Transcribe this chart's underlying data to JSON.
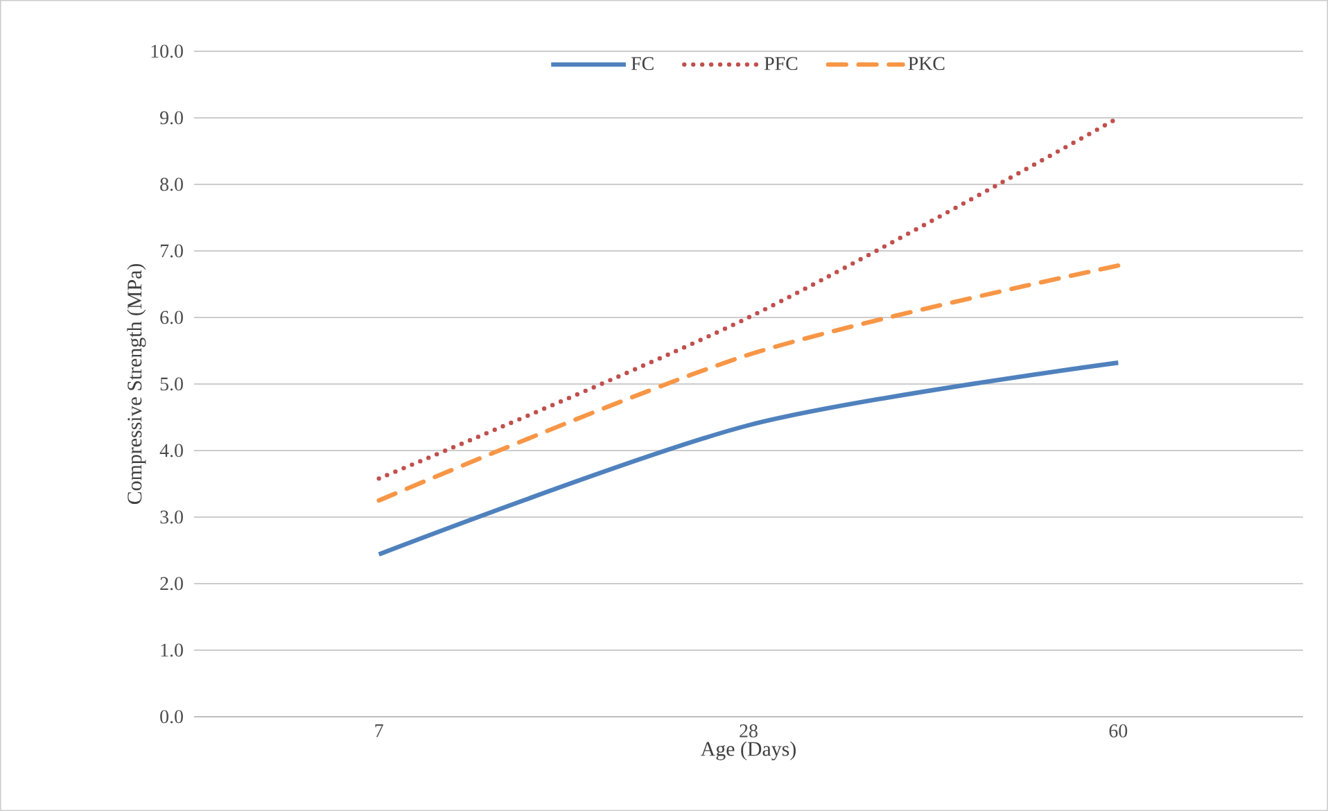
{
  "chart_data": {
    "type": "line",
    "xlabel": "Age (Days)",
    "ylabel": "Compressive Strength (MPa)",
    "categories": [
      "7",
      "28",
      "60"
    ],
    "series": [
      {
        "name": "FC",
        "color": "#4f81bd",
        "line_style": "solid",
        "values": [
          2.44,
          4.38,
          5.32
        ]
      },
      {
        "name": "PFC",
        "color": "#c0504d",
        "line_style": "dotted",
        "values": [
          3.58,
          6.0,
          9.0
        ]
      },
      {
        "name": "PKC",
        "color": "#f79646",
        "line_style": "dashed",
        "values": [
          3.25,
          5.44,
          6.78
        ]
      }
    ],
    "ylim": [
      0,
      10
    ],
    "yticks": [
      {
        "value": 0,
        "label": "0.0"
      },
      {
        "value": 1,
        "label": "1.0"
      },
      {
        "value": 2,
        "label": "2.0"
      },
      {
        "value": 3,
        "label": "3.0"
      },
      {
        "value": 4,
        "label": "4.0"
      },
      {
        "value": 5,
        "label": "5.0"
      },
      {
        "value": 6,
        "label": "6.0"
      },
      {
        "value": 7,
        "label": "7.0"
      },
      {
        "value": 8,
        "label": "8.0"
      },
      {
        "value": 9,
        "label": "9.0"
      },
      {
        "value": 10,
        "label": "10.0"
      }
    ],
    "grid": "y",
    "legend": "top",
    "marker": "none"
  }
}
